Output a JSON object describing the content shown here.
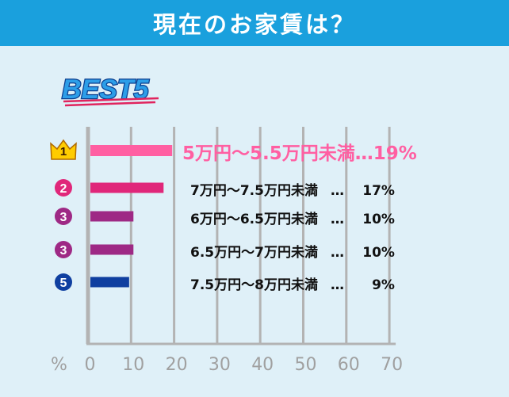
{
  "header": {
    "title": "現在のお家賃は？"
  },
  "badge_text": "BEST5",
  "percent_symbol": "%",
  "rank_labels": [
    "1",
    "2",
    "3",
    "3",
    "5"
  ],
  "label_suffix": "…",
  "chart_data": {
    "type": "bar",
    "orientation": "horizontal",
    "title": "現在のお家賃は？",
    "categories": [
      "5万円～5.5万円未満",
      "7万円～7.5万円未満",
      "6万円～6.5万円未満",
      "6.5万円～7万円未満",
      "7.5万円～8万円未満"
    ],
    "values": [
      19,
      17,
      10,
      10,
      9
    ],
    "value_labels": [
      "19%",
      "17%",
      "10%",
      "10%",
      "9%"
    ],
    "ranks": [
      "1",
      "2",
      "3",
      "3",
      "5"
    ],
    "colors": [
      "#ff5fa2",
      "#e0277a",
      "#9e2985",
      "#9e2985",
      "#0f3fa0"
    ],
    "xticks": [
      0,
      10,
      20,
      30,
      40,
      50,
      60,
      70
    ],
    "xlim": [
      0,
      70
    ],
    "xlabel": "%",
    "grid": true
  }
}
